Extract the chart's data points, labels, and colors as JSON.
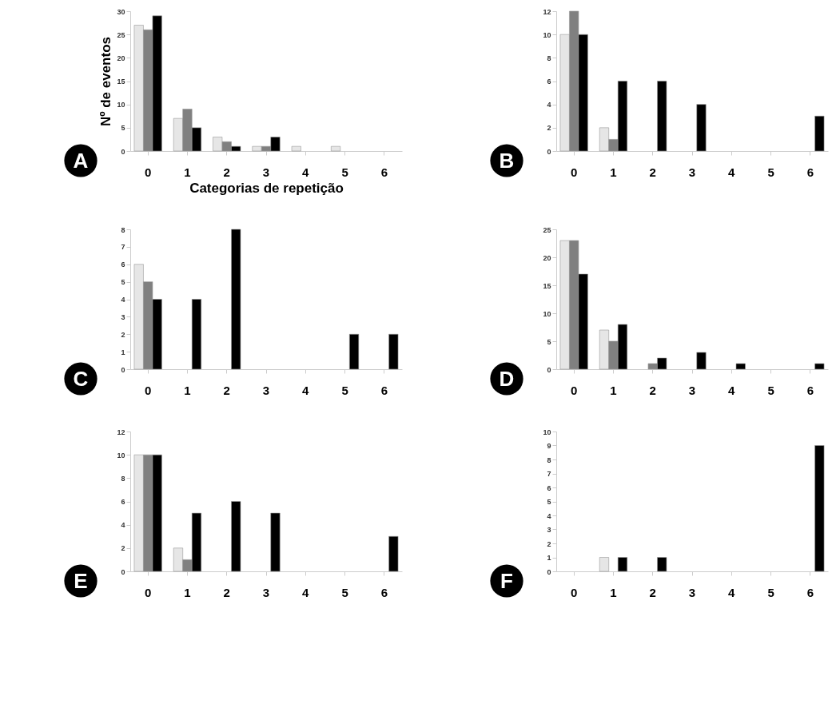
{
  "chart_data": [
    {
      "type": "bar",
      "title": "A",
      "xlabel": "Categorias de repetição",
      "ylabel": "Nº de eventos",
      "categories": [
        "0",
        "1",
        "2",
        "3",
        "4",
        "5",
        "6"
      ],
      "ylim": [
        0,
        30
      ],
      "yticks": [
        0,
        5,
        10,
        15,
        20,
        25,
        30
      ],
      "grid": false,
      "legend": false,
      "series": [
        {
          "color": "#e6e6e6",
          "values": [
            27,
            7,
            3,
            1,
            1,
            1,
            0
          ]
        },
        {
          "color": "#808080",
          "values": [
            26,
            9,
            2,
            1,
            0,
            0,
            0
          ]
        },
        {
          "color": "#000000",
          "values": [
            29,
            5,
            1,
            3,
            0,
            0,
            0
          ]
        }
      ]
    },
    {
      "type": "bar",
      "title": "B",
      "categories": [
        "0",
        "1",
        "2",
        "3",
        "4",
        "5",
        "6"
      ],
      "ylim": [
        0,
        12
      ],
      "yticks": [
        0,
        2,
        4,
        6,
        8,
        10,
        12
      ],
      "grid": false,
      "legend": false,
      "series": [
        {
          "color": "#e6e6e6",
          "values": [
            10,
            2,
            0,
            0,
            0,
            0,
            0
          ]
        },
        {
          "color": "#808080",
          "values": [
            12,
            1,
            0,
            0,
            0,
            0,
            0
          ]
        },
        {
          "color": "#000000",
          "values": [
            10,
            6,
            6,
            4,
            0,
            0,
            3
          ]
        }
      ]
    },
    {
      "type": "bar",
      "title": "C",
      "categories": [
        "0",
        "1",
        "2",
        "3",
        "4",
        "5",
        "6"
      ],
      "ylim": [
        0,
        8
      ],
      "yticks": [
        0,
        1,
        2,
        3,
        4,
        5,
        6,
        7,
        8
      ],
      "grid": false,
      "legend": false,
      "series": [
        {
          "color": "#e6e6e6",
          "values": [
            6,
            0,
            0,
            0,
            0,
            0,
            0
          ]
        },
        {
          "color": "#808080",
          "values": [
            5,
            0,
            0,
            0,
            0,
            0,
            0
          ]
        },
        {
          "color": "#000000",
          "values": [
            4,
            4,
            8,
            0,
            0,
            2,
            2
          ]
        }
      ]
    },
    {
      "type": "bar",
      "title": "D",
      "categories": [
        "0",
        "1",
        "2",
        "3",
        "4",
        "5",
        "6"
      ],
      "ylim": [
        0,
        25
      ],
      "yticks": [
        0,
        5,
        10,
        15,
        20,
        25
      ],
      "grid": false,
      "legend": false,
      "series": [
        {
          "color": "#e6e6e6",
          "values": [
            23,
            7,
            0,
            0,
            0,
            0,
            0
          ]
        },
        {
          "color": "#808080",
          "values": [
            23,
            5,
            1,
            0,
            0,
            0,
            0
          ]
        },
        {
          "color": "#000000",
          "values": [
            17,
            8,
            2,
            3,
            1,
            0,
            1
          ]
        }
      ]
    },
    {
      "type": "bar",
      "title": "E",
      "categories": [
        "0",
        "1",
        "2",
        "3",
        "4",
        "5",
        "6"
      ],
      "ylim": [
        0,
        12
      ],
      "yticks": [
        0,
        2,
        4,
        6,
        8,
        10,
        12
      ],
      "grid": false,
      "legend": false,
      "series": [
        {
          "color": "#e6e6e6",
          "values": [
            10,
            2,
            0,
            0,
            0,
            0,
            0
          ]
        },
        {
          "color": "#808080",
          "values": [
            10,
            1,
            0,
            0,
            0,
            0,
            0
          ]
        },
        {
          "color": "#000000",
          "values": [
            10,
            5,
            6,
            5,
            0,
            0,
            3
          ]
        }
      ]
    },
    {
      "type": "bar",
      "title": "F",
      "categories": [
        "0",
        "1",
        "2",
        "3",
        "4",
        "5",
        "6"
      ],
      "ylim": [
        0,
        10
      ],
      "yticks": [
        0,
        1,
        2,
        3,
        4,
        5,
        6,
        7,
        8,
        9,
        10
      ],
      "grid": false,
      "legend": false,
      "series": [
        {
          "color": "#e6e6e6",
          "values": [
            0,
            1,
            0,
            0,
            0,
            0,
            0
          ]
        },
        {
          "color": "#808080",
          "values": [
            0,
            0,
            0,
            0,
            0,
            0,
            0
          ]
        },
        {
          "color": "#000000",
          "values": [
            0,
            1,
            1,
            0,
            0,
            0,
            9
          ]
        }
      ]
    }
  ]
}
